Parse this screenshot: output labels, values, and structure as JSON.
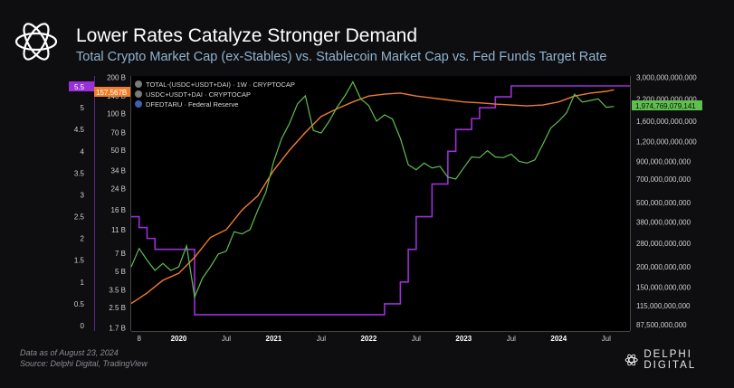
{
  "header": {
    "title": "Lower Rates Catalyze Stronger Demand",
    "subtitle": "Total Crypto Market Cap (ex-Stables) vs. Stablecoin Market Cap vs. Fed Funds Target Rate"
  },
  "legend": [
    {
      "label": "TOTAL-(USDC+USDT+DAI) · 1W · CRYPTOCAP"
    },
    {
      "label": "USDC+USDT+DAI · CRYPTOCAP"
    },
    {
      "label": "DFEDTARU · Federal Reserve"
    }
  ],
  "badges": {
    "fed_rate": "5.5",
    "stablecoin": "157.567B",
    "total": "1,974,769,079,141"
  },
  "footer": {
    "line1": "Data as of August 23, 2024",
    "line2": "Source: Delphi Digital, TradingView"
  },
  "brand": {
    "name": "DELPHI DIGITAL"
  },
  "colors": {
    "total": "#5fbf4f",
    "stablecoin": "#f07d2a",
    "fed": "#9a30d8",
    "background": "#0e0e10"
  },
  "chart_data": {
    "type": "line",
    "title": "Lower Rates Catalyze Stronger Demand",
    "subtitle": "Total Crypto Market Cap (ex-Stables) vs. Stablecoin Market Cap vs. Fed Funds Target Rate",
    "x_tick_labels": [
      "8",
      "2020",
      "Jul",
      "2021",
      "Jul",
      "2022",
      "Jul",
      "2023",
      "Jul",
      "2024",
      "Jul"
    ],
    "left_axis_fed": {
      "ticks": [
        "5.5",
        "5",
        "4.5",
        "4",
        "3.5",
        "3",
        "2.5",
        "2",
        "1.5",
        "1",
        "0.5",
        "0"
      ],
      "ylim": [
        0,
        5.5
      ]
    },
    "left_axis_stablecoin": {
      "ticks": [
        "200 B",
        "140 B",
        "100 B",
        "70 B",
        "50 B",
        "34 B",
        "24 B",
        "16 B",
        "11 B",
        "7 B",
        "5 B",
        "3.5 B",
        "2.5 B",
        "1.7 B"
      ],
      "scale": "log"
    },
    "right_axis_total": {
      "ticks": [
        "3,000,000,000,000",
        "2,200,000,000,000",
        "1,600,000,000,000",
        "1,200,000,000,000",
        "900,000,000,000",
        "700,000,000,000",
        "500,000,000,000",
        "380,000,000,000",
        "280,000,000,000",
        "200,000,000,000",
        "150,000,000,000",
        "115,000,000,000",
        "87,500,000,000"
      ],
      "scale": "log"
    },
    "series": [
      {
        "name": "TOTAL-(USDC+USDT+DAI) · 1W · CRYPTOCAP",
        "axis": "right",
        "points": [
          [
            "2019-07",
            200
          ],
          [
            "2019-08",
            260
          ],
          [
            "2019-09",
            220
          ],
          [
            "2019-10",
            190
          ],
          [
            "2019-11",
            210
          ],
          [
            "2019-12",
            190
          ],
          [
            "2020-01",
            200
          ],
          [
            "2020-02",
            270
          ],
          [
            "2020-03",
            130
          ],
          [
            "2020-04",
            170
          ],
          [
            "2020-05",
            200
          ],
          [
            "2020-06",
            240
          ],
          [
            "2020-07",
            250
          ],
          [
            "2020-08",
            330
          ],
          [
            "2020-09",
            320
          ],
          [
            "2020-10",
            340
          ],
          [
            "2020-11",
            450
          ],
          [
            "2020-12",
            580
          ],
          [
            "2021-01",
            900
          ],
          [
            "2021-02",
            1250
          ],
          [
            "2021-03",
            1550
          ],
          [
            "2021-04",
            2050
          ],
          [
            "2021-05",
            2300
          ],
          [
            "2021-06",
            1400
          ],
          [
            "2021-07",
            1350
          ],
          [
            "2021-08",
            1600
          ],
          [
            "2021-09",
            1950
          ],
          [
            "2021-10",
            2300
          ],
          [
            "2021-11",
            2800
          ],
          [
            "2021-12",
            2200
          ],
          [
            "2022-01",
            2000
          ],
          [
            "2022-02",
            1600
          ],
          [
            "2022-03",
            1750
          ],
          [
            "2022-04",
            1650
          ],
          [
            "2022-05",
            1250
          ],
          [
            "2022-06",
            860
          ],
          [
            "2022-07",
            800
          ],
          [
            "2022-08",
            880
          ],
          [
            "2022-09",
            820
          ],
          [
            "2022-10",
            840
          ],
          [
            "2022-11",
            720
          ],
          [
            "2022-12",
            700
          ],
          [
            "2023-01",
            820
          ],
          [
            "2023-02",
            960
          ],
          [
            "2023-03",
            950
          ],
          [
            "2023-04",
            1050
          ],
          [
            "2023-05",
            960
          ],
          [
            "2023-06",
            950
          ],
          [
            "2023-07",
            1000
          ],
          [
            "2023-08",
            900
          ],
          [
            "2023-09",
            880
          ],
          [
            "2023-10",
            920
          ],
          [
            "2023-11",
            1150
          ],
          [
            "2023-12",
            1450
          ],
          [
            "2024-01",
            1600
          ],
          [
            "2024-02",
            1800
          ],
          [
            "2024-03",
            2350
          ],
          [
            "2024-04",
            2100
          ],
          [
            "2024-05",
            2150
          ],
          [
            "2024-06",
            2200
          ],
          [
            "2024-07",
            1950
          ],
          [
            "2024-08",
            1975
          ]
        ],
        "unit": "billion USD"
      },
      {
        "name": "USDC+USDT+DAI · CRYPTOCAP",
        "axis": "left",
        "points": [
          [
            "2019-07",
            2.7
          ],
          [
            "2019-09",
            3.3
          ],
          [
            "2019-11",
            4.2
          ],
          [
            "2020-01",
            4.8
          ],
          [
            "2020-03",
            6.5
          ],
          [
            "2020-05",
            9.5
          ],
          [
            "2020-07",
            11
          ],
          [
            "2020-09",
            16
          ],
          [
            "2020-11",
            21
          ],
          [
            "2021-01",
            34
          ],
          [
            "2021-03",
            50
          ],
          [
            "2021-05",
            70
          ],
          [
            "2021-07",
            95
          ],
          [
            "2021-09",
            110
          ],
          [
            "2021-11",
            125
          ],
          [
            "2022-01",
            140
          ],
          [
            "2022-03",
            145
          ],
          [
            "2022-05",
            148
          ],
          [
            "2022-07",
            140
          ],
          [
            "2022-09",
            135
          ],
          [
            "2022-11",
            130
          ],
          [
            "2023-01",
            125
          ],
          [
            "2023-03",
            123
          ],
          [
            "2023-05",
            120
          ],
          [
            "2023-07",
            118
          ],
          [
            "2023-09",
            116
          ],
          [
            "2023-11",
            118
          ],
          [
            "2024-01",
            125
          ],
          [
            "2024-03",
            140
          ],
          [
            "2024-05",
            148
          ],
          [
            "2024-07",
            153
          ],
          [
            "2024-08",
            157.567
          ]
        ],
        "unit": "billion USD"
      },
      {
        "name": "DFEDTARU · Federal Reserve",
        "axis": "left",
        "points": [
          [
            "2019-07",
            2.5
          ],
          [
            "2019-08",
            2.25
          ],
          [
            "2019-09",
            2.0
          ],
          [
            "2019-10",
            1.75
          ],
          [
            "2020-03",
            0.25
          ],
          [
            "2022-03",
            0.5
          ],
          [
            "2022-05",
            1.0
          ],
          [
            "2022-06",
            1.75
          ],
          [
            "2022-07",
            2.5
          ],
          [
            "2022-09",
            3.25
          ],
          [
            "2022-11",
            4.0
          ],
          [
            "2022-12",
            4.5
          ],
          [
            "2023-02",
            4.75
          ],
          [
            "2023-03",
            5.0
          ],
          [
            "2023-05",
            5.25
          ],
          [
            "2023-07",
            5.5
          ],
          [
            "2024-08",
            5.5
          ]
        ],
        "unit": "percent"
      }
    ]
  }
}
